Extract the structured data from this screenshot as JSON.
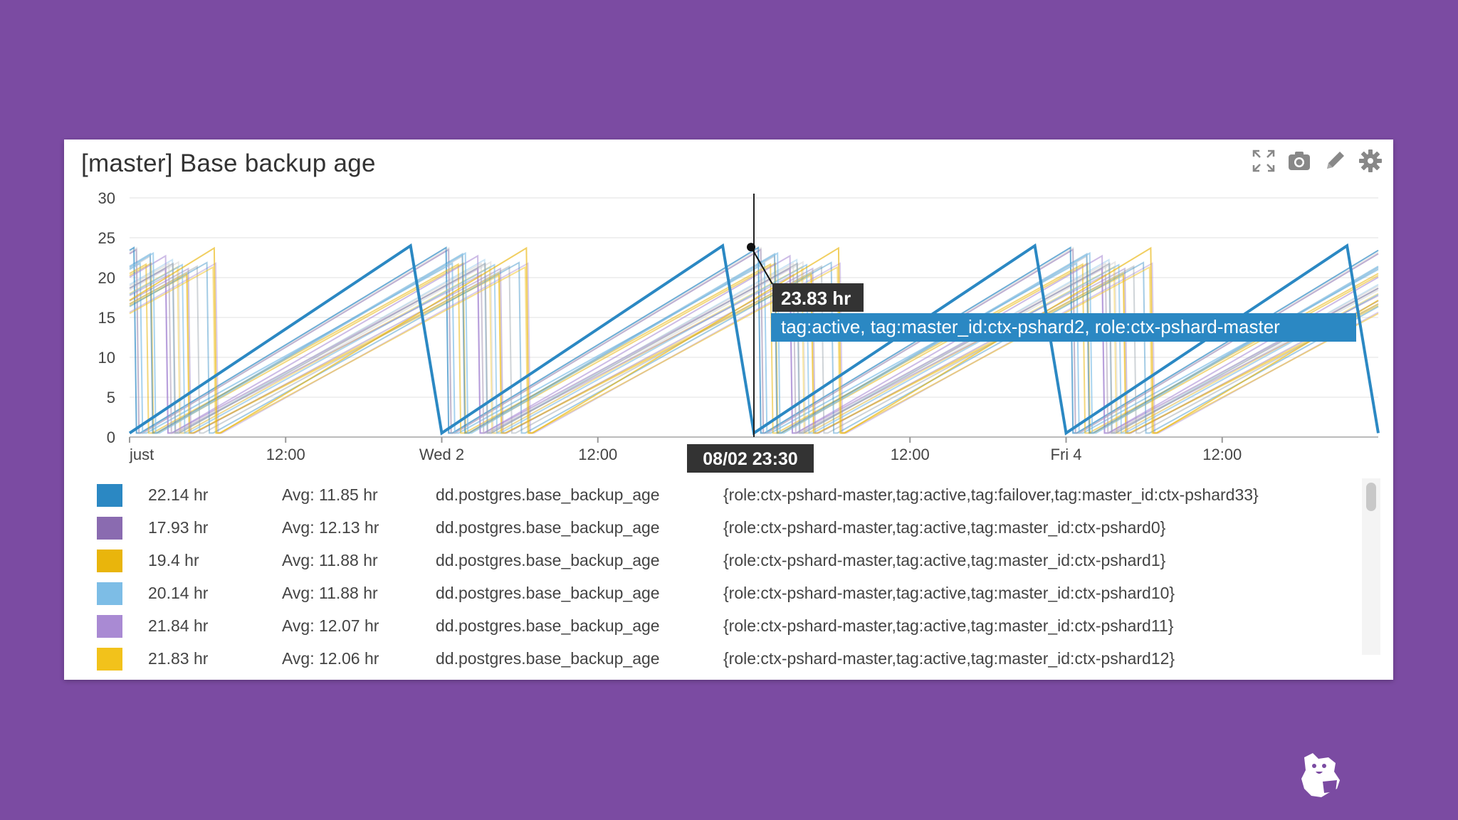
{
  "widget": {
    "title": "[master] Base backup age",
    "toolbar": [
      {
        "name": "fullscreen-icon",
        "label": "Fullscreen"
      },
      {
        "name": "camera-icon",
        "label": "Snapshot"
      },
      {
        "name": "pencil-icon",
        "label": "Edit"
      },
      {
        "name": "gear-icon",
        "label": "Settings"
      }
    ]
  },
  "chart_data": {
    "type": "line",
    "y_ticks": [
      "30",
      "25",
      "20",
      "15",
      "10",
      "5",
      "0"
    ],
    "ylim": [
      0,
      30
    ],
    "x_ticks": [
      "just",
      "12:00",
      "Wed 2",
      "12:00",
      "12:00",
      "Fri 4",
      "12:00"
    ],
    "grid": true,
    "highlight_series": {
      "name": "tag:active, tag:master_id:ctx-pshard2, role:ctx-pshard-master",
      "points": [
        [
          0,
          0.5
        ],
        [
          0.9,
          24
        ],
        [
          1.0,
          0.5
        ],
        [
          1.9,
          24
        ],
        [
          2.0,
          0.5
        ],
        [
          2.9,
          24
        ],
        [
          3.0,
          0.5
        ],
        [
          3.9,
          24
        ],
        [
          4.0,
          0.5
        ]
      ]
    },
    "crosshair": {
      "x_label": "08/02 23:30",
      "value_label": "23.83 hr",
      "tags": "tag:active, tag:master_id:ctx-pshard2, role:ctx-pshard-master",
      "value": 23.83
    }
  },
  "legend": [
    {
      "color": "#2b88c3",
      "value": "22.14 hr",
      "avg": "Avg: 11.85 hr",
      "metric": "dd.postgres.base_backup_age",
      "tags": "{role:ctx-pshard-master,tag:active,tag:failover,tag:master_id:ctx-pshard33}"
    },
    {
      "color": "#8a6bb0",
      "value": "17.93 hr",
      "avg": "Avg: 12.13 hr",
      "metric": "dd.postgres.base_backup_age",
      "tags": "{role:ctx-pshard-master,tag:active,tag:master_id:ctx-pshard0}"
    },
    {
      "color": "#e9b50c",
      "value": "19.4 hr",
      "avg": "Avg: 11.88 hr",
      "metric": "dd.postgres.base_backup_age",
      "tags": "{role:ctx-pshard-master,tag:active,tag:master_id:ctx-pshard1}"
    },
    {
      "color": "#7dbde6",
      "value": "20.14 hr",
      "avg": "Avg: 11.88 hr",
      "metric": "dd.postgres.base_backup_age",
      "tags": "{role:ctx-pshard-master,tag:active,tag:master_id:ctx-pshard10}"
    },
    {
      "color": "#a98ad3",
      "value": "21.84 hr",
      "avg": "Avg: 12.07 hr",
      "metric": "dd.postgres.base_backup_age",
      "tags": "{role:ctx-pshard-master,tag:active,tag:master_id:ctx-pshard11}"
    },
    {
      "color": "#f2c21b",
      "value": "21.83 hr",
      "avg": "Avg: 12.06 hr",
      "metric": "dd.postgres.base_backup_age",
      "tags": "{role:ctx-pshard-master,tag:active,tag:master_id:ctx-pshard12}"
    }
  ],
  "colors": {
    "background": "#7b4ba2",
    "highlight": "#2b88c3",
    "tooltip_bg": "#333333"
  }
}
